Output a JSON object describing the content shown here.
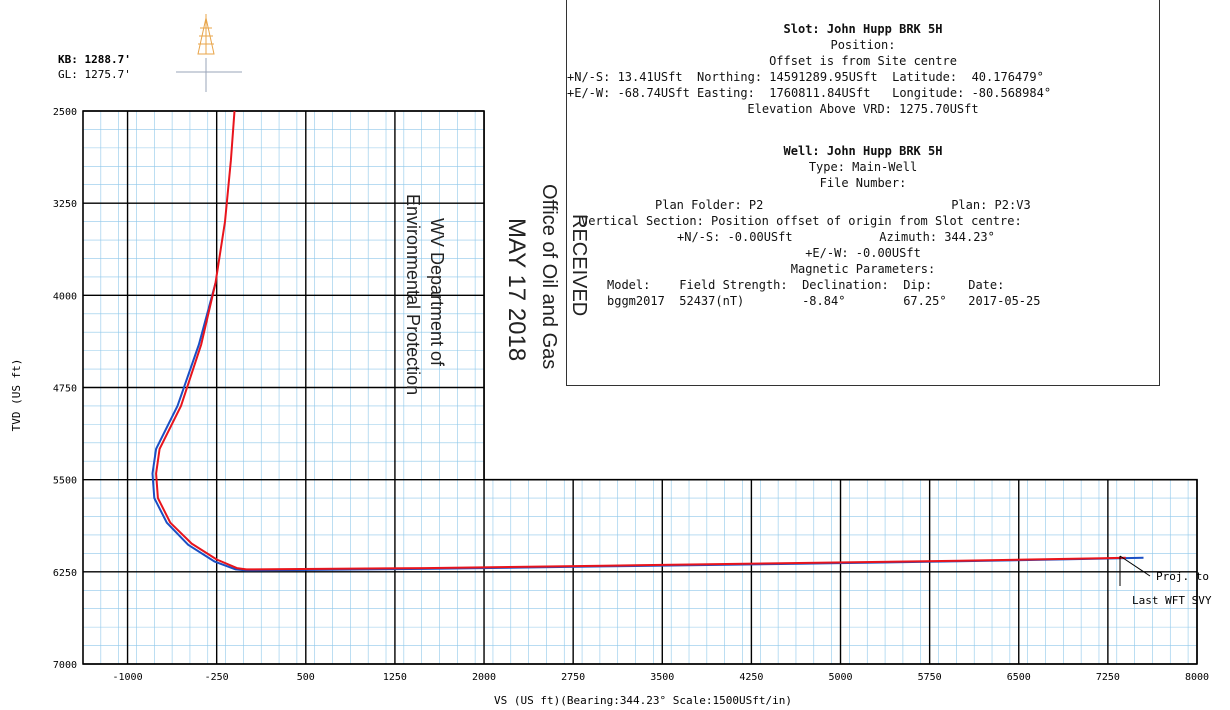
{
  "chart_data": {
    "type": "line",
    "xlabel": "VS (US ft)(Bearing:344.23° Scale:1500USft/in)",
    "ylabel": "TVD (US ft)",
    "xlim": [
      -1375,
      8000
    ],
    "ylim": [
      2500,
      7000
    ],
    "y_inverted": true,
    "x_ticks": [
      "-1000",
      "-250",
      "500",
      "1250",
      "2000",
      "2750",
      "3500",
      "4250",
      "5000",
      "5750",
      "6500",
      "7250",
      "8000"
    ],
    "y_ticks": [
      "2500",
      "3250",
      "4000",
      "4750",
      "5500",
      "6250",
      "7000"
    ],
    "grid": true,
    "series": [
      {
        "color": "#e8141c",
        "points": [
          [
            -100,
            2500
          ],
          [
            -130,
            2900
          ],
          [
            -180,
            3400
          ],
          [
            -260,
            3900
          ],
          [
            -380,
            4400
          ],
          [
            -550,
            4900
          ],
          [
            -730,
            5250
          ],
          [
            -760,
            5450
          ],
          [
            -745,
            5650
          ],
          [
            -640,
            5850
          ],
          [
            -460,
            6020
          ],
          [
            -250,
            6150
          ],
          [
            -80,
            6220
          ],
          [
            0,
            6230
          ],
          [
            1500,
            6220
          ],
          [
            3000,
            6200
          ],
          [
            4500,
            6180
          ],
          [
            6000,
            6160
          ],
          [
            7200,
            6140
          ],
          [
            7400,
            6135
          ]
        ]
      },
      {
        "color": "#1b4fc4",
        "points": [
          [
            -260,
            3900
          ],
          [
            -400,
            4400
          ],
          [
            -580,
            4900
          ],
          [
            -760,
            5250
          ],
          [
            -790,
            5450
          ],
          [
            -775,
            5650
          ],
          [
            -670,
            5850
          ],
          [
            -490,
            6030
          ],
          [
            -270,
            6165
          ],
          [
            -90,
            6230
          ],
          [
            0,
            6238
          ],
          [
            1500,
            6226
          ],
          [
            3000,
            6206
          ],
          [
            4500,
            6186
          ],
          [
            6000,
            6164
          ],
          [
            7200,
            6142
          ],
          [
            7550,
            6136
          ]
        ]
      }
    ],
    "annotations": [
      "Proj. to",
      "Last WFT SVY"
    ]
  },
  "header": {
    "kb_label": "KB: 1288.7'",
    "gl_label": "GL: 1275.7'",
    "line_color": "#e8141c",
    "second_line_color": "#1b4fc4"
  },
  "info": {
    "slot_title": "Slot: John Hupp BRK 5H",
    "position_label": "Position:",
    "offset_note": "Offset is from Site centre",
    "ns_line": "+N/-S: 13.41USft  Northing: 14591289.95USft  Latitude:  40.176479°",
    "ew_line": "+E/-W: -68.74USft Easting:  1760811.84USft   Longitude: -80.568984°",
    "elevation_line": "Elevation Above VRD: 1275.70USft",
    "well_title": "Well: John Hupp BRK 5H",
    "type_line": "Type: Main-Well",
    "file_number": "File Number:",
    "plan_folder_line": "Plan Folder: P2                          Plan: P2:V3",
    "vertical_section_line": "Vertical Section: Position offset of origin from Slot centre:",
    "vs_ns_line": "+N/-S: -0.00USft            Azimuth: 344.23°",
    "vs_ew_line": "+E/-W: -0.00USft",
    "magnetic_line": "Magnetic Parameters:",
    "mag_header": "Model:    Field Strength:  Declination:  Dip:     Date:",
    "mag_values": "bggm2017  52437(nT)        -8.84°        67.25°   2017-05-25"
  },
  "stamp": {
    "line1": "Office of Oil and Gas",
    "line2": "RECEIVED",
    "line3": "MAY 17 2018",
    "line4": "WV Department of",
    "line5": "Environmental Protection"
  }
}
